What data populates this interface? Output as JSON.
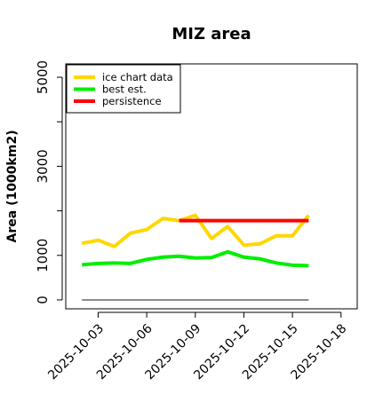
{
  "chart_data": {
    "type": "line",
    "title": "MIZ area",
    "xlabel": "",
    "ylabel": "Area (1000km2)",
    "x_ticks": [
      "2025-10-03",
      "2025-10-06",
      "2025-10-09",
      "2025-10-12",
      "2025-10-15",
      "2025-10-18"
    ],
    "y_ticks": [
      "0",
      "1000",
      "3000",
      "5000"
    ],
    "xlim": [
      "2025-10-01",
      "2025-10-19"
    ],
    "ylim": [
      -200,
      5300
    ],
    "grid": false,
    "legend_position": "top-left",
    "series": [
      {
        "name": "ice chart data",
        "color": "#FFD700",
        "x": [
          "2025-10-02",
          "2025-10-03",
          "2025-10-04",
          "2025-10-05",
          "2025-10-06",
          "2025-10-07",
          "2025-10-08",
          "2025-10-09",
          "2025-10-10",
          "2025-10-11",
          "2025-10-12",
          "2025-10-13",
          "2025-10-14",
          "2025-10-15",
          "2025-10-16"
        ],
        "values": [
          1270,
          1340,
          1200,
          1500,
          1580,
          1830,
          1780,
          1900,
          1380,
          1650,
          1230,
          1260,
          1440,
          1440,
          1900
        ]
      },
      {
        "name": "best est.",
        "color": "#00EE00",
        "x": [
          "2025-10-02",
          "2025-10-03",
          "2025-10-04",
          "2025-10-05",
          "2025-10-06",
          "2025-10-07",
          "2025-10-08",
          "2025-10-09",
          "2025-10-10",
          "2025-10-11",
          "2025-10-12",
          "2025-10-13",
          "2025-10-14",
          "2025-10-15",
          "2025-10-16"
        ],
        "values": [
          790,
          820,
          830,
          820,
          910,
          960,
          980,
          940,
          950,
          1080,
          960,
          920,
          830,
          780,
          770
        ]
      },
      {
        "name": "persistence",
        "color": "#FF0000",
        "x": [
          "2025-10-08",
          "2025-10-16"
        ],
        "values": [
          1780,
          1780
        ]
      }
    ],
    "baseline": {
      "color": "#666666",
      "x": [
        "2025-10-02",
        "2025-10-16"
      ],
      "values": [
        0,
        0
      ]
    }
  }
}
